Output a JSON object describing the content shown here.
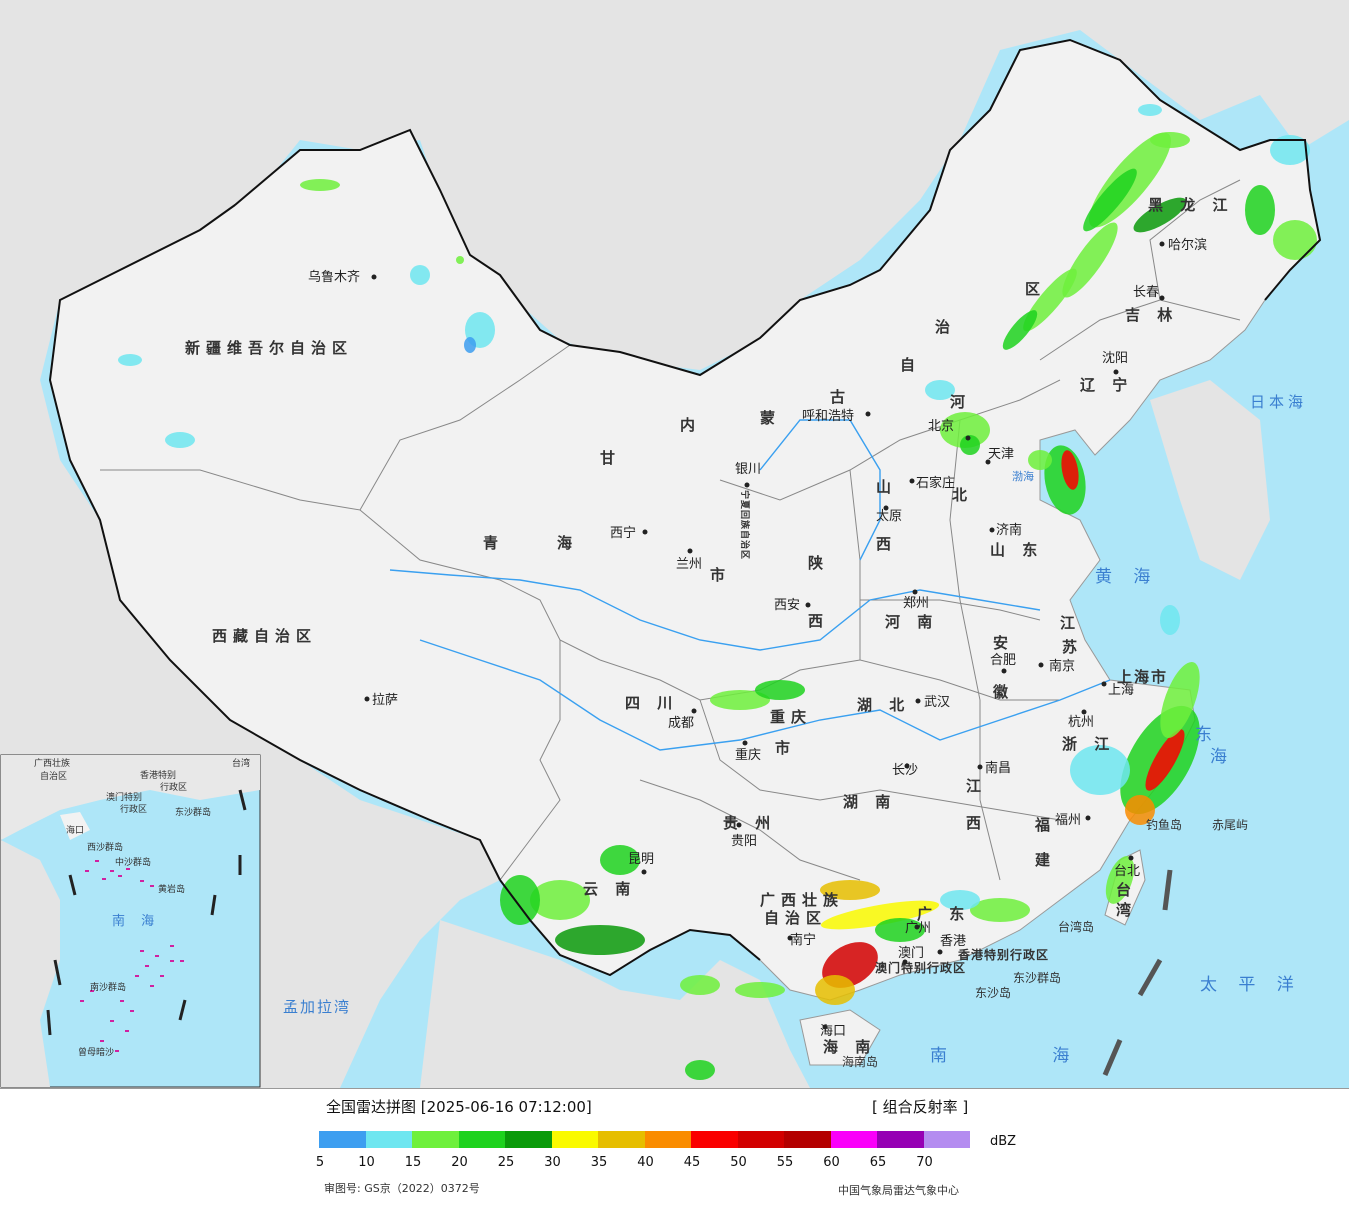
{
  "legend": {
    "title": "全国雷达拼图 [2025-06-16 07:12:00]",
    "product": "[ 组合反射率 ]",
    "unit": "dBZ",
    "colors": [
      "#3d9ef0",
      "#6ee6f0",
      "#6ef03c",
      "#1ed21e",
      "#0a9a0a",
      "#fafa00",
      "#e6be00",
      "#fa8c00",
      "#fa0000",
      "#d20000",
      "#b40000",
      "#fa00fa",
      "#9600b4",
      "#b48cf0"
    ],
    "ticks": [
      "5",
      "10",
      "15",
      "20",
      "25",
      "30",
      "35",
      "40",
      "45",
      "50",
      "55",
      "60",
      "65",
      "70"
    ],
    "approval": "审图号: GS京（2022）0372号",
    "agency": "中国气象局雷达气象中心"
  },
  "map": {
    "colors": {
      "sea": "#aee6f8",
      "land": "#f2f2f2",
      "foreign": "#e4e4e4",
      "river": "#3aa0f0"
    },
    "provinces": [
      {
        "id": "xinjiang",
        "text": "新疆维吾尔自治区"
      },
      {
        "id": "xizang",
        "text": "西藏自治区"
      },
      {
        "id": "qinghai-1",
        "text": "青"
      },
      {
        "id": "qinghai-2",
        "text": "海"
      },
      {
        "id": "gansu",
        "text": "甘"
      },
      {
        "id": "neimenggu-1",
        "text": "内"
      },
      {
        "id": "neimenggu-2",
        "text": "蒙"
      },
      {
        "id": "neimenggu-3",
        "text": "古"
      },
      {
        "id": "neimenggu-4",
        "text": "自"
      },
      {
        "id": "neimenggu-5",
        "text": "治"
      },
      {
        "id": "neimenggu-6",
        "text": "区"
      },
      {
        "id": "heilongjiang",
        "text": "黑 龙 江"
      },
      {
        "id": "jilin",
        "text": "吉 林"
      },
      {
        "id": "liaoning",
        "text": "辽 宁"
      },
      {
        "id": "hebei-1",
        "text": "河"
      },
      {
        "id": "hebei-2",
        "text": "北"
      },
      {
        "id": "shanxi-1",
        "text": "山"
      },
      {
        "id": "shanxi-2",
        "text": "西"
      },
      {
        "id": "shandong",
        "text": "山 东"
      },
      {
        "id": "shaanxi-1",
        "text": "陕"
      },
      {
        "id": "shaanxi-2",
        "text": "西"
      },
      {
        "id": "henan",
        "text": "河 南"
      },
      {
        "id": "jiangsu-1",
        "text": "江"
      },
      {
        "id": "jiangsu-2",
        "text": "苏"
      },
      {
        "id": "anhui-1",
        "text": "安"
      },
      {
        "id": "anhui-2",
        "text": "徽"
      },
      {
        "id": "shanghai",
        "text": "上海市"
      },
      {
        "id": "zhejiang",
        "text": "浙 江"
      },
      {
        "id": "sichuan",
        "text": "四 川"
      },
      {
        "id": "chongqing-1",
        "text": "重庆"
      },
      {
        "id": "chongqing-2",
        "text": "市"
      },
      {
        "id": "hubei",
        "text": "湖 北"
      },
      {
        "id": "hunan",
        "text": "湖 南"
      },
      {
        "id": "jiangxi-1",
        "text": "江"
      },
      {
        "id": "jiangxi-2",
        "text": "西"
      },
      {
        "id": "fujian-1",
        "text": "福"
      },
      {
        "id": "fujian-2",
        "text": "建"
      },
      {
        "id": "guizhou",
        "text": "贵 州"
      },
      {
        "id": "yunnan",
        "text": "云 南"
      },
      {
        "id": "guangxi-1",
        "text": "广西壮族"
      },
      {
        "id": "guangxi-2",
        "text": "自治区"
      },
      {
        "id": "guangdong",
        "text": "广 东"
      },
      {
        "id": "hainan",
        "text": "海 南"
      },
      {
        "id": "taiwan-1",
        "text": "台"
      },
      {
        "id": "taiwan-2",
        "text": "湾"
      },
      {
        "id": "hk",
        "text": "香港特别行政区"
      },
      {
        "id": "macao",
        "text": "澳门特别行政区"
      },
      {
        "id": "ningxia",
        "text": "宁夏回族自治区"
      },
      {
        "id": "gansu-shi",
        "text": "市"
      }
    ],
    "cities": [
      {
        "id": "urumqi",
        "text": "乌鲁木齐"
      },
      {
        "id": "lhasa",
        "text": "拉萨"
      },
      {
        "id": "xining",
        "text": "西宁"
      },
      {
        "id": "lanzhou",
        "text": "兰州"
      },
      {
        "id": "yinchuan",
        "text": "银川"
      },
      {
        "id": "hohhot",
        "text": "呼和浩特"
      },
      {
        "id": "beijing",
        "text": "北京"
      },
      {
        "id": "tianjin",
        "text": "天津"
      },
      {
        "id": "shijiazhuang",
        "text": "石家庄"
      },
      {
        "id": "taiyuan",
        "text": "太原"
      },
      {
        "id": "jinan",
        "text": "济南"
      },
      {
        "id": "xian",
        "text": "西安"
      },
      {
        "id": "zhengzhou",
        "text": "郑州"
      },
      {
        "id": "hefei",
        "text": "合肥"
      },
      {
        "id": "nanjing",
        "text": "南京"
      },
      {
        "id": "shanghai",
        "text": "上海"
      },
      {
        "id": "hangzhou",
        "text": "杭州"
      },
      {
        "id": "wuhan",
        "text": "武汉"
      },
      {
        "id": "chengdu",
        "text": "成都"
      },
      {
        "id": "chongqing",
        "text": "重庆"
      },
      {
        "id": "changsha",
        "text": "长沙"
      },
      {
        "id": "nanchang",
        "text": "南昌"
      },
      {
        "id": "fuzhou",
        "text": "福州"
      },
      {
        "id": "guiyang",
        "text": "贵阳"
      },
      {
        "id": "kunming",
        "text": "昆明"
      },
      {
        "id": "nanning",
        "text": "南宁"
      },
      {
        "id": "guangzhou",
        "text": "广州"
      },
      {
        "id": "hongkong",
        "text": "香港"
      },
      {
        "id": "macau",
        "text": "澳门"
      },
      {
        "id": "haikou",
        "text": "海口"
      },
      {
        "id": "taibei",
        "text": "台北"
      },
      {
        "id": "harbin",
        "text": "哈尔滨"
      },
      {
        "id": "changchun",
        "text": "长春"
      },
      {
        "id": "shenyang",
        "text": "沈阳"
      }
    ],
    "seas": [
      {
        "id": "japan-sea",
        "text": "日本海"
      },
      {
        "id": "yellow-sea",
        "text": "黄 海"
      },
      {
        "id": "east-sea-1",
        "text": "东"
      },
      {
        "id": "east-sea-2",
        "text": "海"
      },
      {
        "id": "south-sea",
        "text": "南 海"
      },
      {
        "id": "pacific",
        "text": "太 平 洋"
      },
      {
        "id": "bengal",
        "text": "孟加拉湾"
      },
      {
        "id": "bohai",
        "text": "渤海"
      }
    ],
    "islands": [
      {
        "id": "diaoyu",
        "text": "钓鱼岛"
      },
      {
        "id": "chiwei",
        "text": "赤尾屿"
      },
      {
        "id": "taiwan-isl",
        "text": "台湾岛"
      },
      {
        "id": "dongsha-qd",
        "text": "东沙群岛"
      },
      {
        "id": "dongsha",
        "text": "东沙岛"
      },
      {
        "id": "hainan-isl",
        "text": "海南岛"
      }
    ],
    "inset": [
      {
        "id": "in-guangxi",
        "text": "广西壮族"
      },
      {
        "id": "in-guangxi2",
        "text": "自治区"
      },
      {
        "id": "in-hk",
        "text": "香港特别"
      },
      {
        "id": "in-hk2",
        "text": "行政区"
      },
      {
        "id": "in-mac",
        "text": "澳门特别"
      },
      {
        "id": "in-mac2",
        "text": "行政区"
      },
      {
        "id": "in-dongsha",
        "text": "东沙群岛"
      },
      {
        "id": "in-hai",
        "text": "海口"
      },
      {
        "id": "in-xisha",
        "text": "西沙群岛"
      },
      {
        "id": "in-zhongsha",
        "text": "中沙群岛"
      },
      {
        "id": "in-huangyan",
        "text": "黄岩岛"
      },
      {
        "id": "in-nanhai",
        "text": "南 海"
      },
      {
        "id": "in-nansha",
        "text": "南沙群岛"
      },
      {
        "id": "in-zengmu",
        "text": "曾母暗沙"
      },
      {
        "id": "in-taiwan",
        "text": "台湾"
      }
    ]
  }
}
